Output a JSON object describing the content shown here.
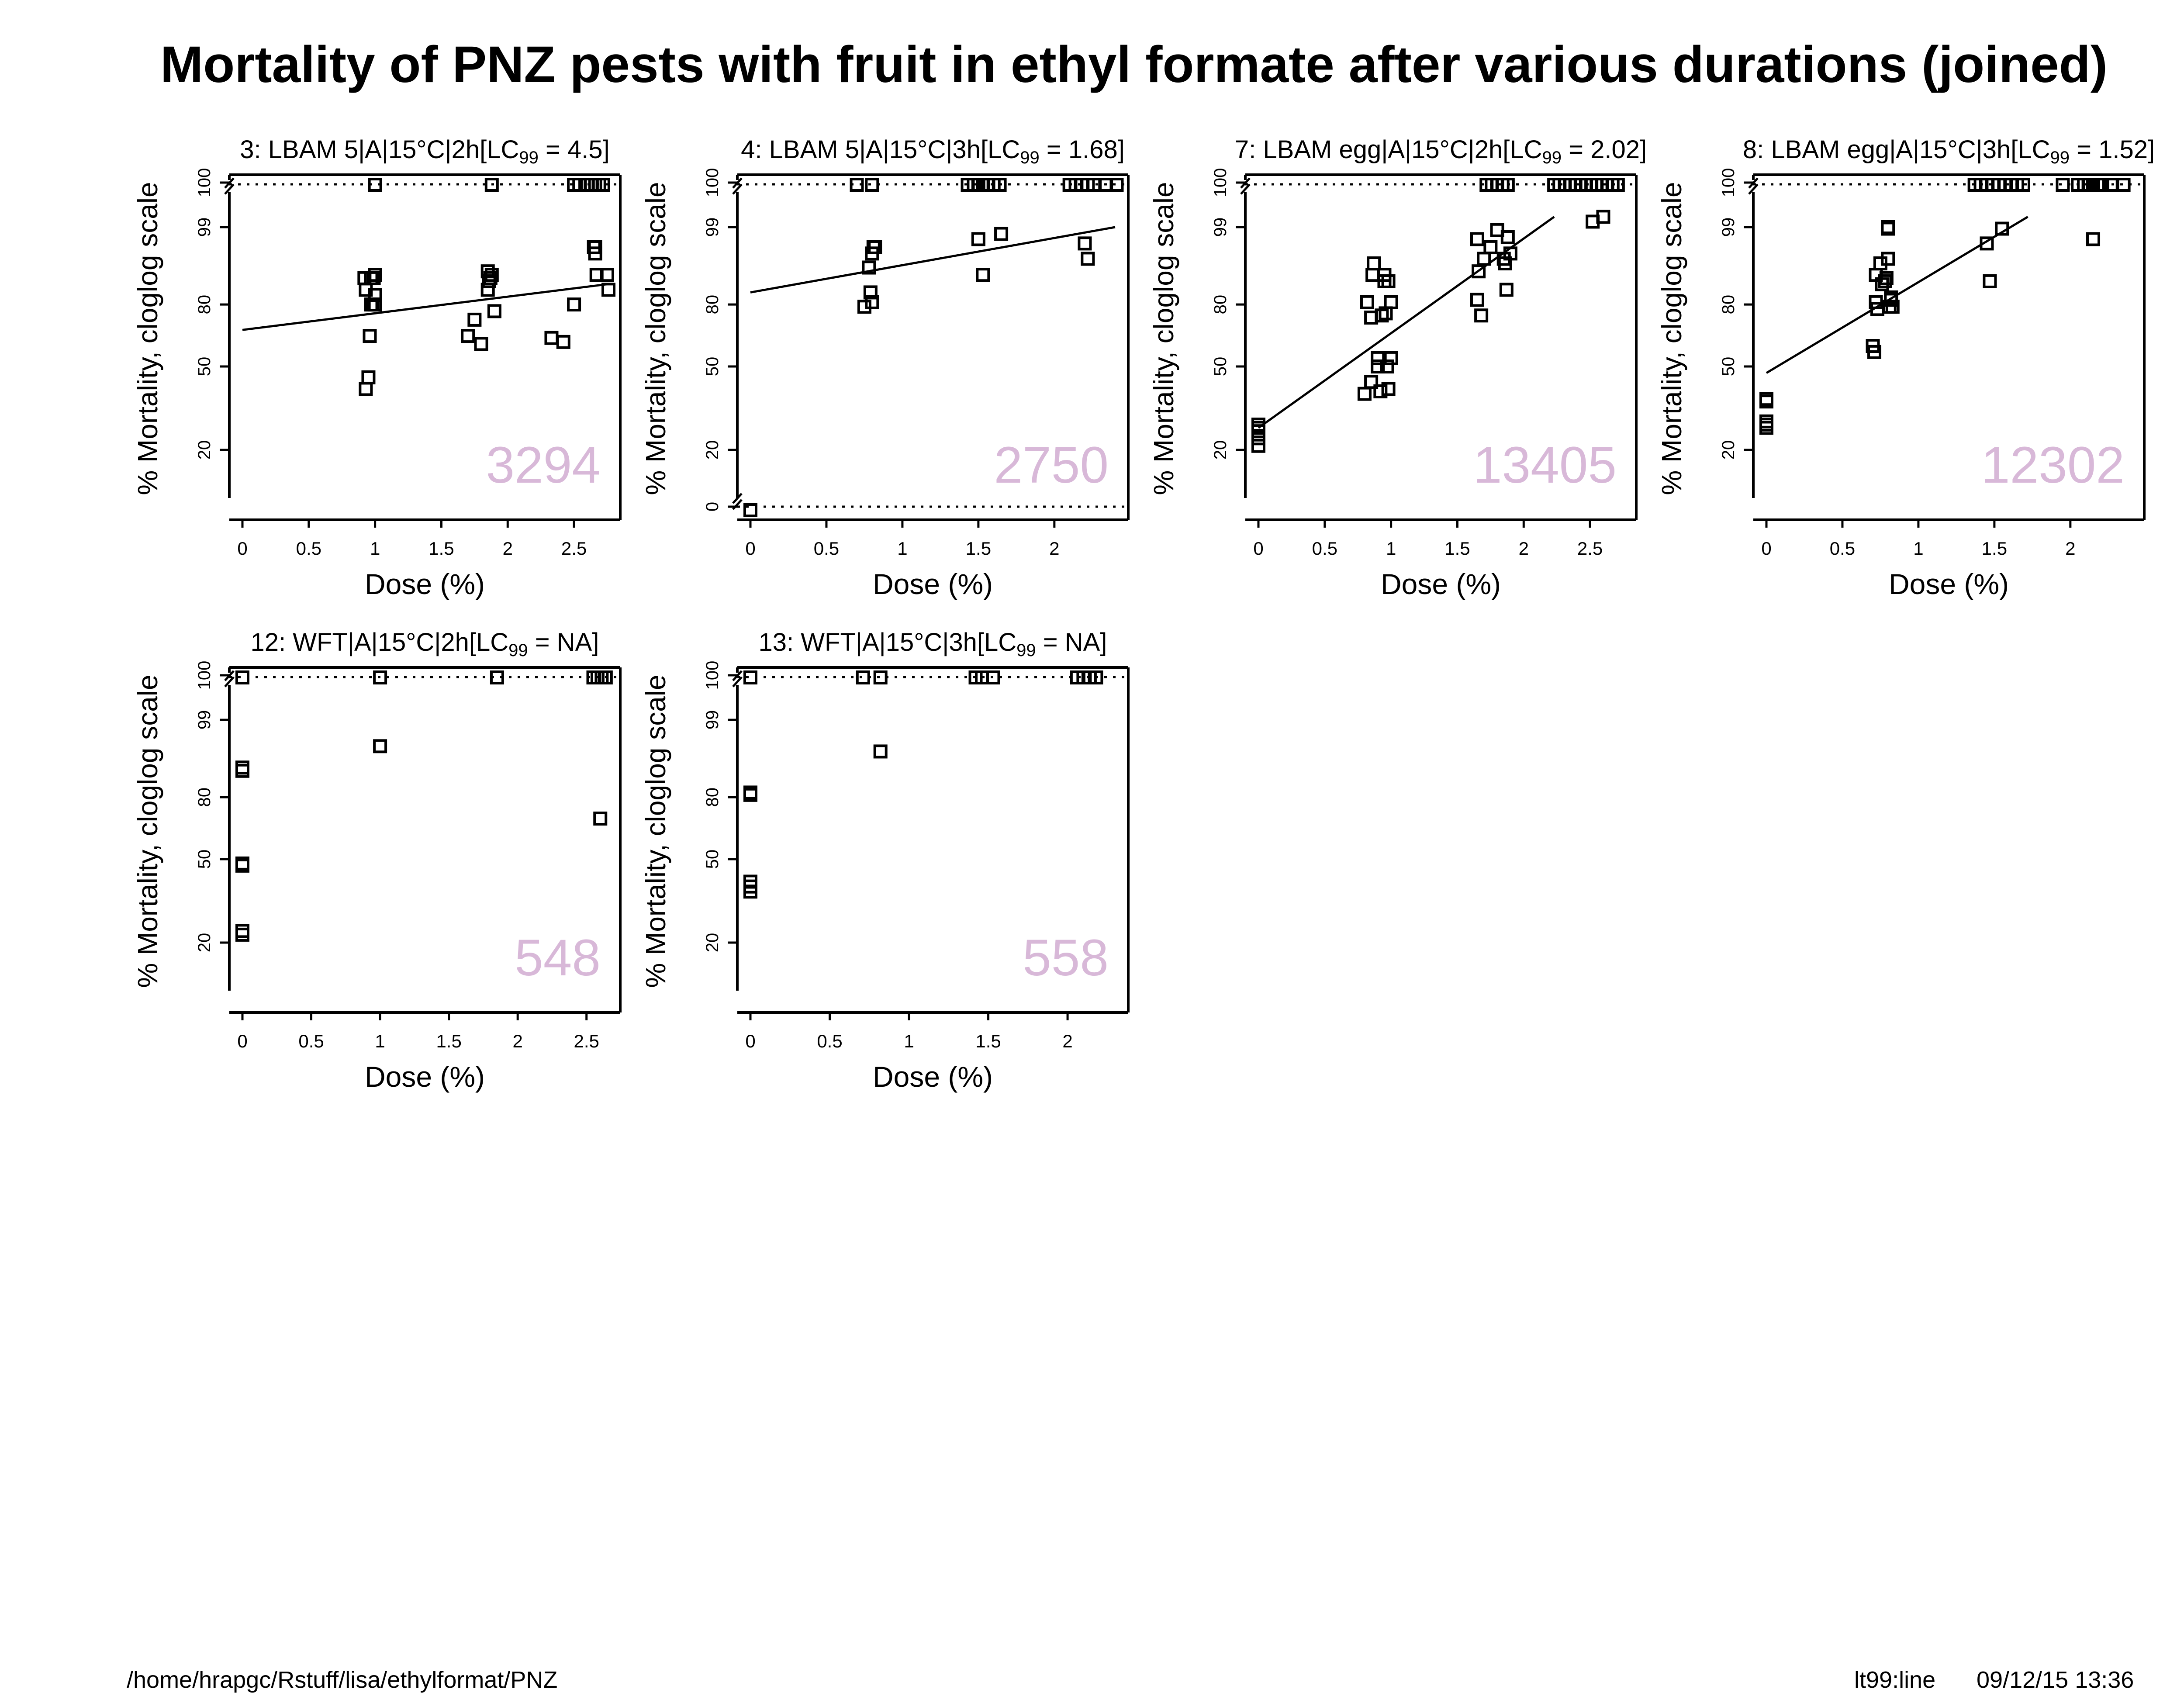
{
  "title": "Mortality of PNZ pests with fruit in ethyl formate after various durations (joined)",
  "footer": {
    "path": "/home/hrapgc/Rstuff/lisa/ethylformat/PNZ",
    "method": "lt99:line",
    "datetime": "09/12/15  13:36"
  },
  "colors": {
    "count_label": "#d8b8d8",
    "axis": "#000000"
  },
  "ylabel": "% Mortality, cloglog scale",
  "xlabel": "Dose (%)",
  "chart_data": [
    {
      "type": "scatter",
      "panel_title": "3: LBAM 5|A|15°C|2h[LC",
      "lc_sub": "99",
      "lc_value": " = 4.5]",
      "count": "3294",
      "xlim": [
        0,
        2.75
      ],
      "xticks": [
        "0",
        "0.5",
        "1",
        "1.5",
        "2",
        "2.5"
      ],
      "yticks": [
        "20",
        "50",
        "80",
        "99",
        "100"
      ],
      "has_zero": false,
      "fit_line": [
        [
          0,
          68
        ],
        [
          2.75,
          88
        ]
      ],
      "x": [
        0.93,
        0.95,
        0.96,
        0.97,
        0.97,
        0.98,
        0.99,
        1.0,
        0.92,
        0.93,
        1.0,
        1.0,
        1.7,
        1.75,
        1.8,
        1.85,
        1.85,
        1.86,
        1.87,
        1.88,
        1.9,
        2.33,
        2.42,
        2.5,
        2.65,
        2.66,
        2.66,
        2.67,
        2.75,
        2.76
      ],
      "y": [
        40,
        45,
        65,
        90,
        80,
        80,
        90,
        91,
        90,
        86,
        84,
        80,
        65,
        73,
        61,
        92,
        86,
        89,
        90,
        91,
        77,
        64,
        62,
        80,
        97,
        97,
        96,
        91,
        91,
        86
      ],
      "x100": [
        1.0,
        1.88,
        2.5,
        2.54,
        2.6,
        2.63,
        2.66,
        2.69,
        2.72
      ],
      "x0": []
    },
    {
      "type": "scatter",
      "panel_title": "4: LBAM 5|A|15°C|3h[LC",
      "lc_sub": "99",
      "lc_value": " = 1.68]",
      "count": "2750",
      "xlim": [
        0,
        2.4
      ],
      "xticks": [
        "0",
        "0.5",
        "1",
        "1.5",
        "2"
      ],
      "yticks": [
        "0",
        "20",
        "50",
        "80",
        "99",
        "100"
      ],
      "has_zero": true,
      "fit_line": [
        [
          0,
          85
        ],
        [
          2.4,
          99
        ]
      ],
      "x": [
        0.75,
        0.78,
        0.79,
        0.8,
        0.8,
        0.81,
        0.82,
        1.5,
        1.53,
        1.65,
        2.2,
        2.22
      ],
      "y": [
        79,
        93,
        85,
        81,
        96,
        97,
        97,
        98,
        91,
        98.5,
        97.5,
        95
      ],
      "x100": [
        0.7,
        0.8,
        1.43,
        1.47,
        1.5,
        1.53,
        1.56,
        1.6,
        1.64,
        2.1,
        2.14,
        2.18,
        2.22,
        2.26,
        2.34,
        2.41
      ],
      "x0": [
        0
      ]
    },
    {
      "type": "scatter",
      "panel_title": "7: LBAM egg|A|15°C|2h[LC",
      "lc_sub": "99",
      "lc_value": " = 2.02]",
      "count": "13405",
      "xlim": [
        0,
        2.75
      ],
      "xticks": [
        "0",
        "0.5",
        "1",
        "1.5",
        "2",
        "2.5"
      ],
      "yticks": [
        "20",
        "50",
        "80",
        "99",
        "100"
      ],
      "has_zero": false,
      "fit_line": [
        [
          0,
          26
        ],
        [
          2.23,
          99.5
        ]
      ],
      "x": [
        0,
        0,
        0,
        0,
        0,
        0.8,
        0.82,
        0.85,
        0.85,
        0.86,
        0.87,
        0.9,
        0.9,
        0.92,
        0.93,
        0.95,
        0.95,
        0.96,
        0.97,
        0.98,
        0.98,
        1.0,
        1.0,
        1.65,
        1.65,
        1.66,
        1.68,
        1.7,
        1.75,
        1.8,
        1.85,
        1.86,
        1.87,
        1.88,
        1.9,
        2.52,
        2.6
      ],
      "y": [
        21,
        23,
        25,
        26,
        27,
        38,
        81,
        43,
        74,
        91,
        94,
        50,
        54,
        39,
        75,
        91,
        89,
        76,
        50,
        40,
        89,
        81,
        54,
        98,
        82,
        92,
        75,
        95,
        97,
        98.8,
        95,
        94,
        86,
        98.2,
        96,
        99.3,
        99.5
      ],
      "x100": [
        1.72,
        1.76,
        1.8,
        1.84,
        1.88,
        2.23,
        2.27,
        2.31,
        2.35,
        2.39,
        2.43,
        2.47,
        2.51,
        2.55,
        2.59,
        2.63,
        2.67,
        2.71
      ],
      "x0": []
    },
    {
      "type": "scatter",
      "panel_title": "8: LBAM egg|A|15°C|3h[LC",
      "lc_sub": "99",
      "lc_value": " = 1.52]",
      "count": "12302",
      "xlim": [
        0,
        2.4
      ],
      "xticks": [
        "0",
        "0.5",
        "1",
        "1.5",
        "2"
      ],
      "yticks": [
        "20",
        "50",
        "80",
        "99",
        "100"
      ],
      "has_zero": false,
      "fit_line": [
        [
          0,
          47
        ],
        [
          1.72,
          99.5
        ]
      ],
      "x": [
        0,
        0,
        0,
        0,
        0,
        0,
        0.7,
        0.71,
        0.72,
        0.72,
        0.73,
        0.75,
        0.76,
        0.78,
        0.79,
        0.8,
        0.8,
        0.8,
        0.81,
        0.82,
        0.82,
        0.83,
        1.45,
        1.47,
        1.55,
        2.15
      ],
      "y": [
        26,
        27,
        28,
        35,
        36,
        27,
        60,
        57,
        81,
        91,
        78,
        94,
        88,
        89,
        90,
        95,
        98.9,
        99,
        79,
        83,
        82,
        79,
        97.5,
        89,
        98.9,
        98
      ],
      "x100": [
        1.37,
        1.41,
        1.45,
        1.49,
        1.53,
        1.57,
        1.61,
        1.65,
        1.69,
        1.95,
        2.05,
        2.09,
        2.12,
        2.15,
        2.18,
        2.21,
        2.27,
        2.35
      ],
      "x0": []
    },
    {
      "type": "scatter",
      "panel_title": "12: WFT|A|15°C|2h[LC",
      "lc_sub": "99",
      "lc_value": " = NA]",
      "count": "548",
      "xlim": [
        0,
        2.65
      ],
      "xticks": [
        "0",
        "0.5",
        "1",
        "1.5",
        "2",
        "2.5"
      ],
      "yticks": [
        "20",
        "50",
        "80",
        "99",
        "100"
      ],
      "has_zero": false,
      "fit_line": [],
      "x": [
        0,
        0,
        0,
        0,
        0,
        0,
        1.0,
        2.6
      ],
      "y": [
        22,
        23,
        47,
        48,
        90,
        91,
        96,
        70
      ],
      "x100": [
        0,
        1.0,
        1.85,
        2.55,
        2.58,
        2.61,
        2.64
      ],
      "x0": []
    },
    {
      "type": "scatter",
      "panel_title": "13: WFT|A|15°C|3h[LC",
      "lc_sub": "99",
      "lc_value": " = NA]",
      "count": "558",
      "xlim": [
        0,
        2.3
      ],
      "xticks": [
        "0",
        "0.5",
        "1",
        "1.5",
        "2"
      ],
      "yticks": [
        "20",
        "50",
        "80",
        "99",
        "100"
      ],
      "has_zero": false,
      "fit_line": [],
      "x": [
        0,
        0,
        0,
        0,
        0,
        0.82
      ],
      "y": [
        36,
        38,
        40,
        81,
        82,
        95
      ],
      "x100": [
        0,
        0.71,
        0.82,
        1.42,
        1.46,
        1.53,
        2.06,
        2.1,
        2.14,
        2.18
      ],
      "x0": []
    }
  ]
}
